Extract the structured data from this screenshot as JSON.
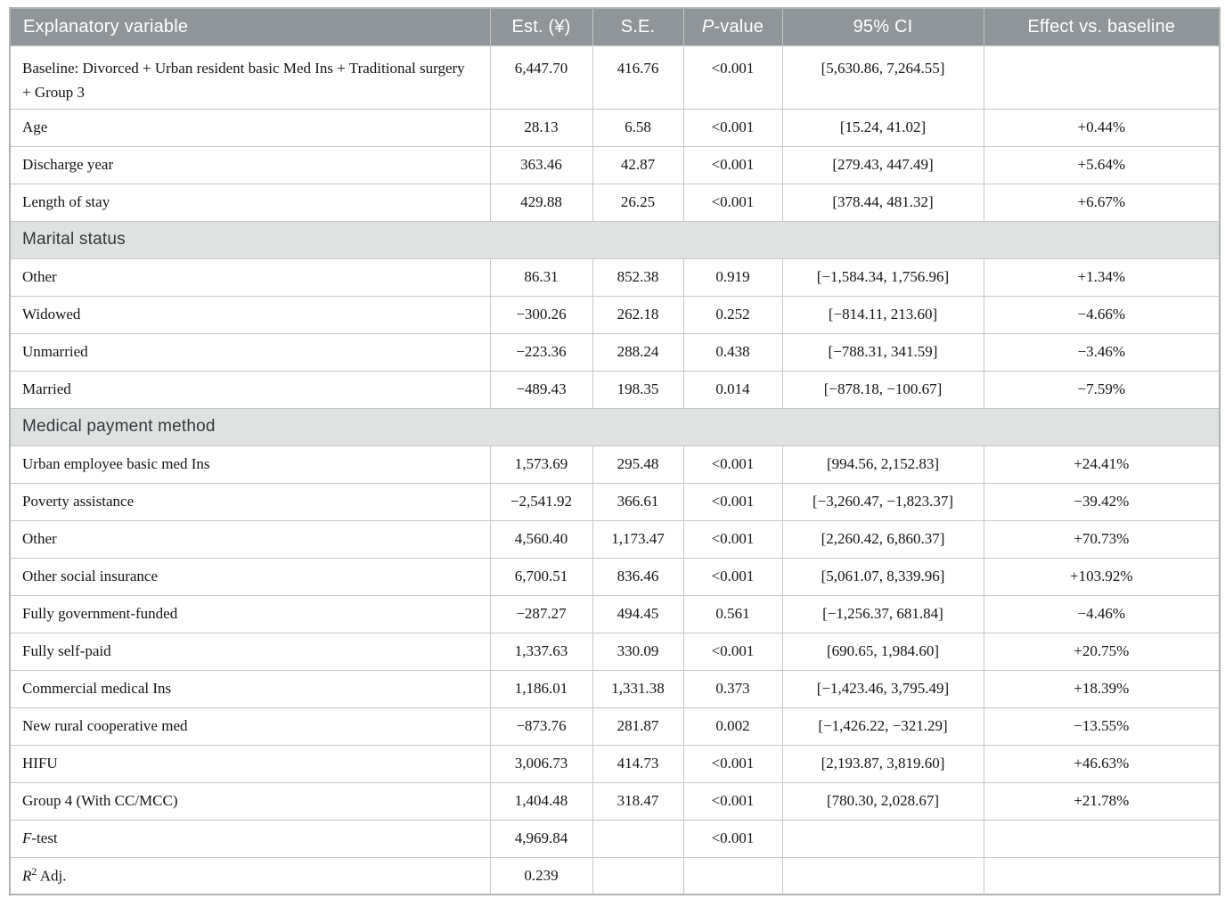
{
  "colors": {
    "header-bg": "#8f9599",
    "header-text": "#ffffff",
    "section-bg": "#e0e2e2",
    "border": "#c3c8c5",
    "body-text": "#141414"
  },
  "table": {
    "header": {
      "explanatory": "Explanatory variable",
      "est": "Est. (¥)",
      "se": "S.E.",
      "p_italic": "P",
      "p_rest": "-value",
      "ci": "95% CI",
      "effect": "Effect vs. baseline"
    },
    "rows": [
      {
        "type": "data",
        "tall": true,
        "label": [
          {
            "t": "Baseline: Divorced + Urban resident basic Med Ins + Traditional surgery + Group 3"
          }
        ],
        "est": "6,447.70",
        "se": "416.76",
        "p": "<0.001",
        "ci": "[5,630.86, 7,264.55]",
        "effect": ""
      },
      {
        "type": "data",
        "label": [
          {
            "t": "Age"
          }
        ],
        "est": "28.13",
        "se": "6.58",
        "p": "<0.001",
        "ci": "[15.24, 41.02]",
        "effect": "+0.44%"
      },
      {
        "type": "data",
        "label": [
          {
            "t": "Discharge year"
          }
        ],
        "est": "363.46",
        "se": "42.87",
        "p": "<0.001",
        "ci": "[279.43, 447.49]",
        "effect": "+5.64%"
      },
      {
        "type": "data",
        "label": [
          {
            "t": "Length of stay"
          }
        ],
        "est": "429.88",
        "se": "26.25",
        "p": "<0.001",
        "ci": "[378.44, 481.32]",
        "effect": "+6.67%"
      },
      {
        "type": "section",
        "label": [
          {
            "t": "Marital status"
          }
        ]
      },
      {
        "type": "data",
        "label": [
          {
            "t": "Other"
          }
        ],
        "est": "86.31",
        "se": "852.38",
        "p": "0.919",
        "ci": "[−1,584.34, 1,756.96]",
        "effect": "+1.34%"
      },
      {
        "type": "data",
        "label": [
          {
            "t": "Widowed"
          }
        ],
        "est": "−300.26",
        "se": "262.18",
        "p": "0.252",
        "ci": "[−814.11, 213.60]",
        "effect": "−4.66%"
      },
      {
        "type": "data",
        "label": [
          {
            "t": "Unmarried"
          }
        ],
        "est": "−223.36",
        "se": "288.24",
        "p": "0.438",
        "ci": "[−788.31, 341.59]",
        "effect": "−3.46%"
      },
      {
        "type": "data",
        "label": [
          {
            "t": "Married"
          }
        ],
        "est": "−489.43",
        "se": "198.35",
        "p": "0.014",
        "ci": "[−878.18, −100.67]",
        "effect": "−7.59%"
      },
      {
        "type": "section",
        "label": [
          {
            "t": "Medical payment method"
          }
        ]
      },
      {
        "type": "data",
        "label": [
          {
            "t": "Urban employee basic med Ins"
          }
        ],
        "est": "1,573.69",
        "se": "295.48",
        "p": "<0.001",
        "ci": "[994.56, 2,152.83]",
        "effect": "+24.41%"
      },
      {
        "type": "data",
        "label": [
          {
            "t": "Poverty assistance"
          }
        ],
        "est": "−2,541.92",
        "se": "366.61",
        "p": "<0.001",
        "ci": "[−3,260.47, −1,823.37]",
        "effect": "−39.42%"
      },
      {
        "type": "data",
        "label": [
          {
            "t": "Other"
          }
        ],
        "est": "4,560.40",
        "se": "1,173.47",
        "p": "<0.001",
        "ci": "[2,260.42, 6,860.37]",
        "effect": "+70.73%"
      },
      {
        "type": "data",
        "label": [
          {
            "t": "Other social insurance"
          }
        ],
        "est": "6,700.51",
        "se": "836.46",
        "p": "<0.001",
        "ci": "[5,061.07, 8,339.96]",
        "effect": "+103.92%"
      },
      {
        "type": "data",
        "label": [
          {
            "t": "Fully government-funded"
          }
        ],
        "est": "−287.27",
        "se": "494.45",
        "p": "0.561",
        "ci": "[−1,256.37, 681.84]",
        "effect": "−4.46%"
      },
      {
        "type": "data",
        "label": [
          {
            "t": "Fully self-paid"
          }
        ],
        "est": "1,337.63",
        "se": "330.09",
        "p": "<0.001",
        "ci": "[690.65, 1,984.60]",
        "effect": "+20.75%"
      },
      {
        "type": "data",
        "label": [
          {
            "t": "Commercial medical Ins"
          }
        ],
        "est": "1,186.01",
        "se": "1,331.38",
        "p": "0.373",
        "ci": "[−1,423.46, 3,795.49]",
        "effect": "+18.39%"
      },
      {
        "type": "data",
        "label": [
          {
            "t": "New rural cooperative med"
          }
        ],
        "est": "−873.76",
        "se": "281.87",
        "p": "0.002",
        "ci": "[−1,426.22, −321.29]",
        "effect": "−13.55%"
      },
      {
        "type": "data",
        "label": [
          {
            "t": "HIFU"
          }
        ],
        "est": "3,006.73",
        "se": "414.73",
        "p": "<0.001",
        "ci": "[2,193.87, 3,819.60]",
        "effect": "+46.63%"
      },
      {
        "type": "data",
        "label": [
          {
            "t": "Group 4 (With CC/MCC)"
          }
        ],
        "est": "1,404.48",
        "se": "318.47",
        "p": "<0.001",
        "ci": "[780.30, 2,028.67]",
        "effect": "+21.78%"
      },
      {
        "type": "data",
        "label": [
          {
            "t": "F",
            "i": true
          },
          {
            "t": "-test"
          }
        ],
        "est": "4,969.84",
        "se": "",
        "p": "<0.001",
        "ci": "",
        "effect": ""
      },
      {
        "type": "data",
        "label": [
          {
            "t": "R",
            "i": true
          },
          {
            "t": "2",
            "sup": true
          },
          {
            "t": " Adj."
          }
        ],
        "est": "0.239",
        "se": "",
        "p": "",
        "ci": "",
        "effect": ""
      }
    ]
  }
}
